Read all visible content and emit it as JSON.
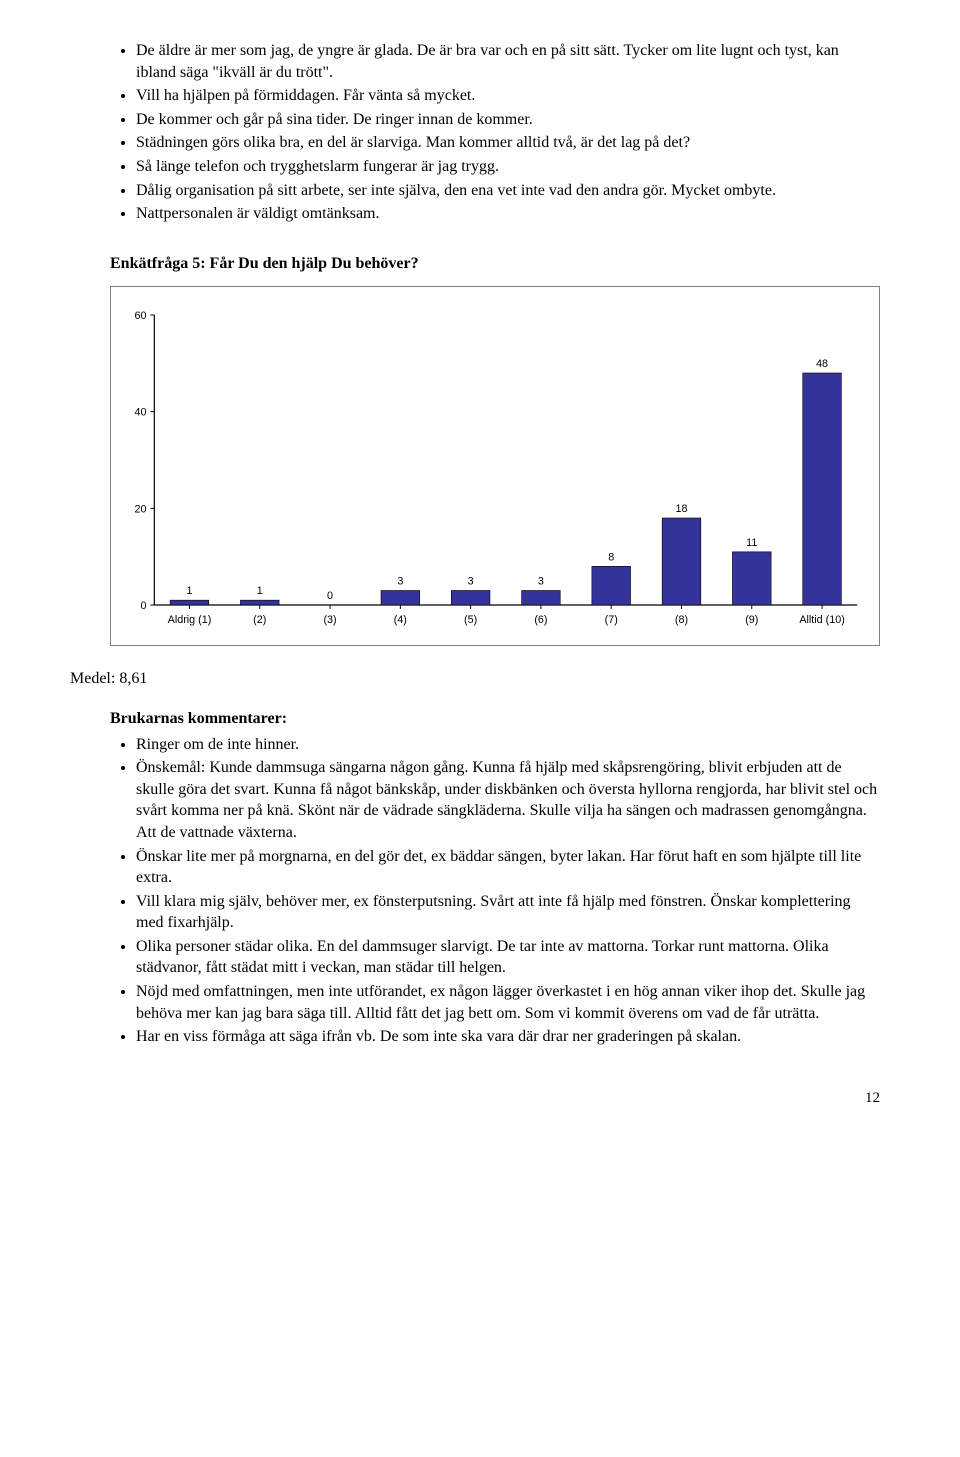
{
  "top_bullets": [
    "De äldre är mer som jag, de yngre är glada. De är bra var och en på sitt sätt. Tycker om lite lugnt och tyst, kan ibland säga \"ikväll är du trött\".",
    "Vill ha hjälpen på förmiddagen. Får vänta så mycket.",
    "De kommer och går på sina tider. De ringer innan de kommer.",
    "Städningen görs olika bra, en del är slarviga. Man kommer alltid två, är det lag på det?",
    "Så länge telefon och trygghetslarm fungerar är jag trygg.",
    "Dålig organisation på sitt arbete, ser inte själva, den ena vet inte vad den andra gör. Mycket ombyte.",
    "Nattpersonalen är väldigt omtänksam."
  ],
  "question_heading": "Enkätfråga 5: Får Du den hjälp Du behöver?",
  "chart": {
    "type": "bar",
    "categories": [
      "Aldrig (1)",
      "(2)",
      "(3)",
      "(4)",
      "(5)",
      "(6)",
      "(7)",
      "(8)",
      "(9)",
      "Alltid (10)"
    ],
    "values": [
      1,
      1,
      0,
      3,
      3,
      3,
      8,
      18,
      11,
      48
    ],
    "bar_color": "#333399",
    "border_color": "#808080",
    "axis_color": "#000000",
    "title_fontsize": 11,
    "label_fontsize": 11,
    "y_ticks": [
      0,
      20,
      40,
      60
    ],
    "ylim": [
      0,
      60
    ],
    "background_color": "#ffffff",
    "bar_width": 0.55
  },
  "medel_label": "Medel: 8,61",
  "comments_heading": "Brukarnas kommentarer:",
  "bottom_bullets": [
    "Ringer om de inte hinner.",
    "Önskemål: Kunde dammsuga sängarna någon gång. Kunna få hjälp med skåpsrengöring, blivit erbjuden att de skulle göra det svart. Kunna få något bänkskåp, under diskbänken och översta hyllorna rengjorda, har blivit stel och svårt komma ner på knä. Skönt när de vädrade sängkläderna. Skulle vilja ha sängen och madrassen genomgångna. Att de vattnade växterna.",
    "Önskar lite mer på morgnarna, en del gör det, ex bäddar sängen, byter lakan. Har förut haft en som hjälpte till lite extra.",
    "Vill klara mig själv, behöver mer, ex fönsterputsning. Svårt att inte få hjälp med fönstren. Önskar komplettering med fixarhjälp.",
    "Olika personer städar olika. En del dammsuger slarvigt. De tar inte av mattorna. Torkar runt mattorna. Olika städvanor, fått städat mitt i veckan, man städar till helgen.",
    "Nöjd med omfattningen, men inte utförandet, ex någon lägger överkastet i en hög annan viker ihop det. Skulle jag behöva mer kan jag bara säga till. Alltid fått det jag bett om. Som vi kommit överens om vad de får uträtta.",
    "Har en viss förmåga att säga ifrån vb. De som inte ska vara där drar ner graderingen på skalan."
  ],
  "page_number": "12"
}
